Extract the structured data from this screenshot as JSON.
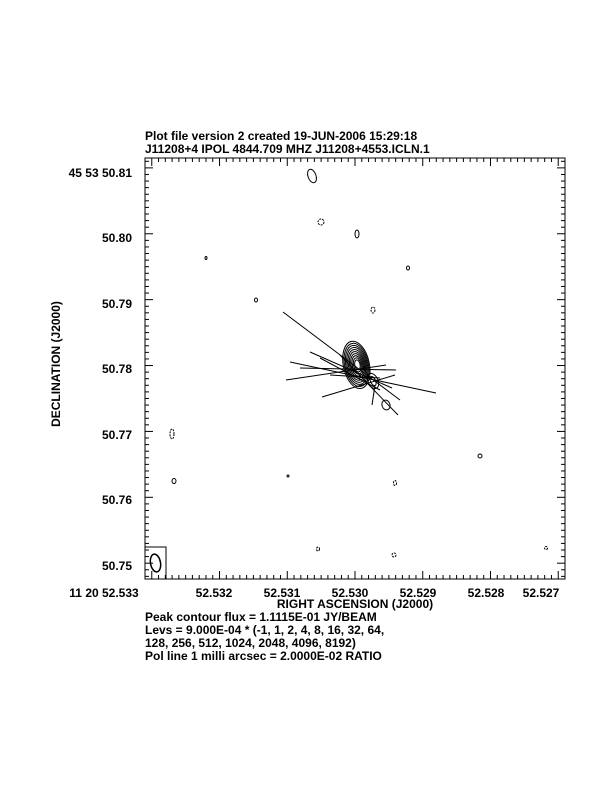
{
  "header": {
    "line1": "Plot file version 2  created 19-JUN-2006 15:29:18",
    "line2": "J11208+4  IPOL  4844.709 MHZ  J11208+4553.ICLN.1"
  },
  "footer": {
    "line1": "Peak contour flux =  1.1115E-01 JY/BEAM",
    "line2": "Levs = 9.000E-04 * (-1, 1, 2, 4, 8, 16, 32, 64,",
    "line3": "128, 256, 512, 1024, 2048, 4096, 8192)",
    "line4": "Pol line 1 milli arcsec =  2.0000E-02 RATIO"
  },
  "chart_data": {
    "type": "contour",
    "xlabel": "RIGHT ASCENSION (J2000)",
    "ylabel": "DECLINATION (J2000)",
    "x_ticks": [
      "11 20 52.533",
      "52.532",
      "52.531",
      "52.530",
      "52.529",
      "52.528",
      "52.527"
    ],
    "y_ticks": [
      "45 53 50.81",
      "50.80",
      "50.79",
      "50.78",
      "50.77",
      "50.76",
      "50.75"
    ],
    "xlim": [
      52.5331,
      52.5269
    ],
    "ylim": [
      50.7476,
      50.8115
    ],
    "peak_flux": "1.1115E-01 JY/BEAM",
    "base_level": "9.000E-04",
    "levels": [
      -1,
      1,
      2,
      4,
      8,
      16,
      32,
      64,
      128,
      256,
      512,
      1024,
      2048,
      4096,
      8192
    ],
    "pol_scale": "2.0000E-02 RATIO",
    "core": {
      "ra": 52.52998,
      "dec": 50.7801
    }
  }
}
